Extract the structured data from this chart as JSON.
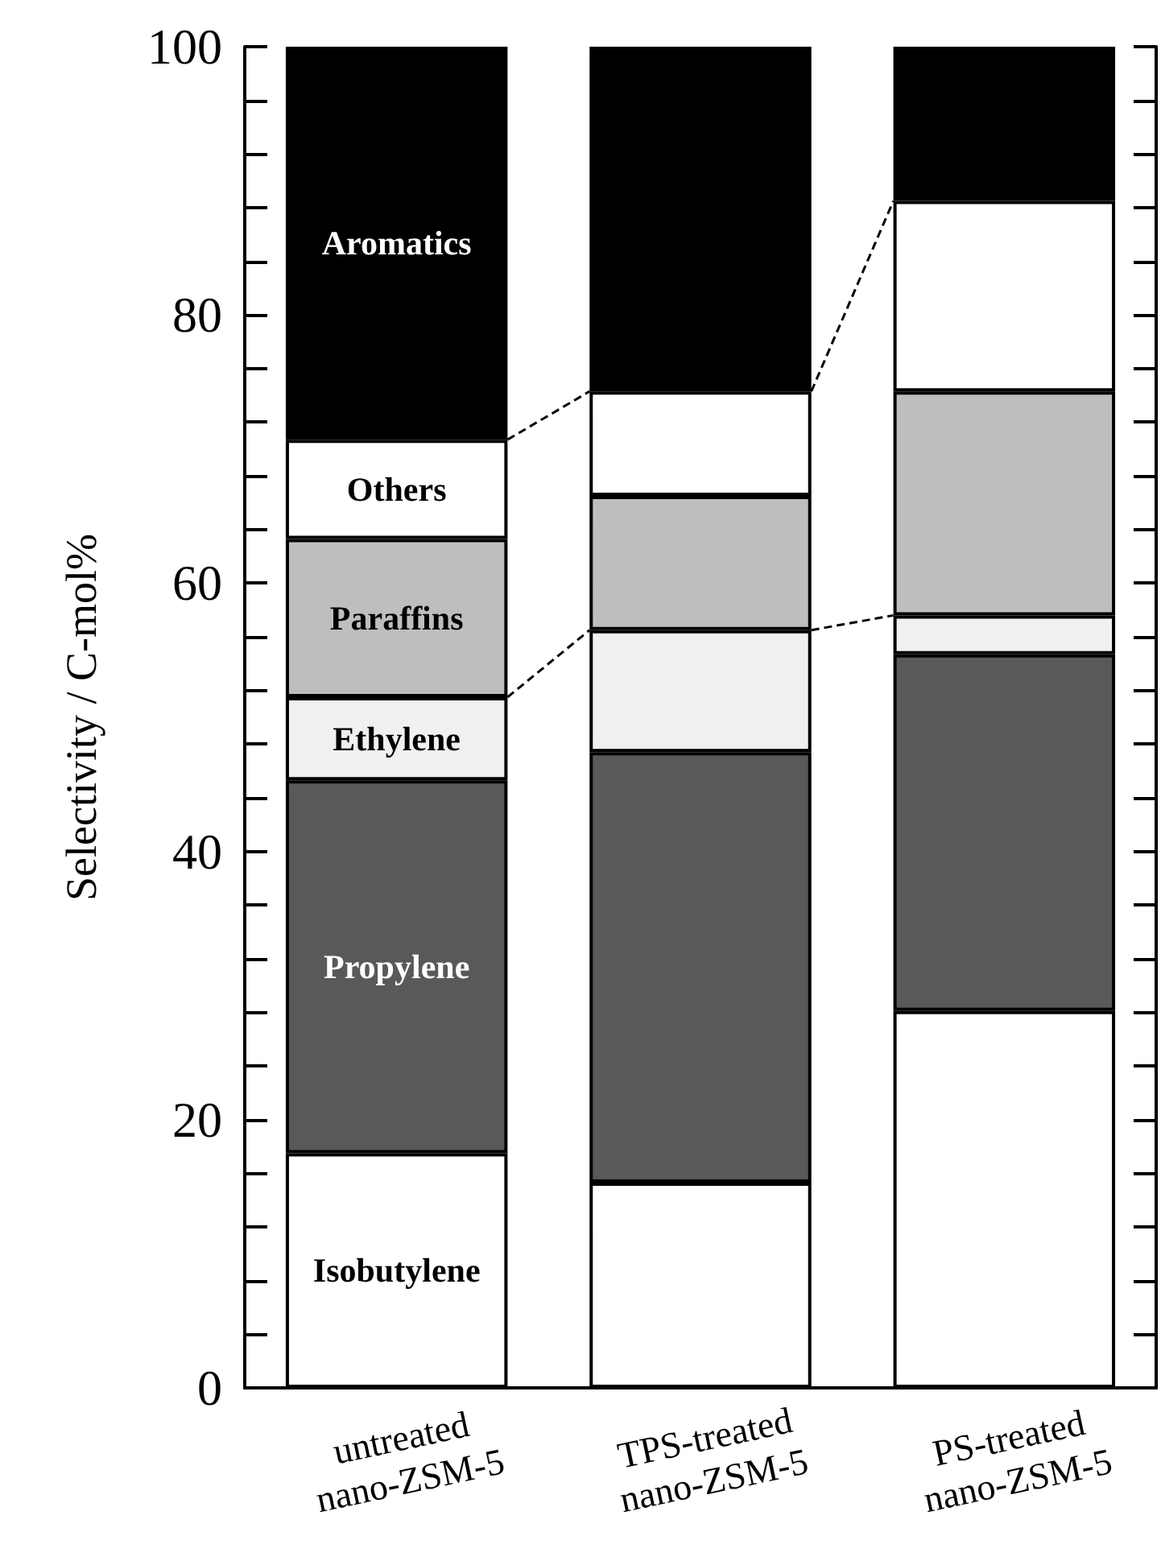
{
  "chart_data": {
    "type": "bar",
    "stacked": true,
    "ylabel": "Selectivity / C-mol%",
    "categories": [
      "untreated\nnano-ZSM-5",
      "TPS-treated\nnano-ZSM-5",
      "PS-treated\nnano-ZSM-5"
    ],
    "series": [
      {
        "name": "Isobutylene",
        "color": "#ffffff",
        "values": [
          17.5,
          15.3,
          28.1
        ]
      },
      {
        "name": "Propylene",
        "color": "#595959",
        "values": [
          27.8,
          32.1,
          26.6
        ]
      },
      {
        "name": "Ethylene",
        "color": "#f0f0f0",
        "values": [
          6.2,
          9.1,
          2.9
        ]
      },
      {
        "name": "Paraffins",
        "color": "#bebebe",
        "values": [
          11.8,
          10.0,
          16.7
        ]
      },
      {
        "name": "Others",
        "color": "#ffffff",
        "values": [
          7.4,
          7.8,
          14.2
        ]
      },
      {
        "name": "Aromatics",
        "color": "#000000",
        "values": [
          29.3,
          25.7,
          11.5
        ]
      }
    ],
    "ylim": [
      0,
      100
    ],
    "yticks": [
      0,
      {
        "value": 4,
        "label": null
      },
      {
        "value": 8,
        "label": null
      },
      {
        "value": 12,
        "label": null
      },
      {
        "value": 16,
        "label": null
      },
      20,
      {
        "value": 24,
        "label": null
      },
      {
        "value": 28,
        "label": null
      },
      {
        "value": 32,
        "label": null
      },
      {
        "value": 36,
        "label": null
      },
      40,
      {
        "value": 44,
        "label": null
      },
      {
        "value": 48,
        "label": null
      },
      {
        "value": 52,
        "label": null
      },
      {
        "value": 56,
        "label": null
      },
      60,
      {
        "value": 64,
        "label": null
      },
      {
        "value": 68,
        "label": null
      },
      {
        "value": 72,
        "label": null
      },
      {
        "value": 76,
        "label": null
      },
      80,
      {
        "value": 84,
        "label": null
      },
      {
        "value": 88,
        "label": null
      },
      {
        "value": 92,
        "label": null
      },
      {
        "value": 96,
        "label": null
      },
      100
    ],
    "grid": false,
    "legend": false
  }
}
